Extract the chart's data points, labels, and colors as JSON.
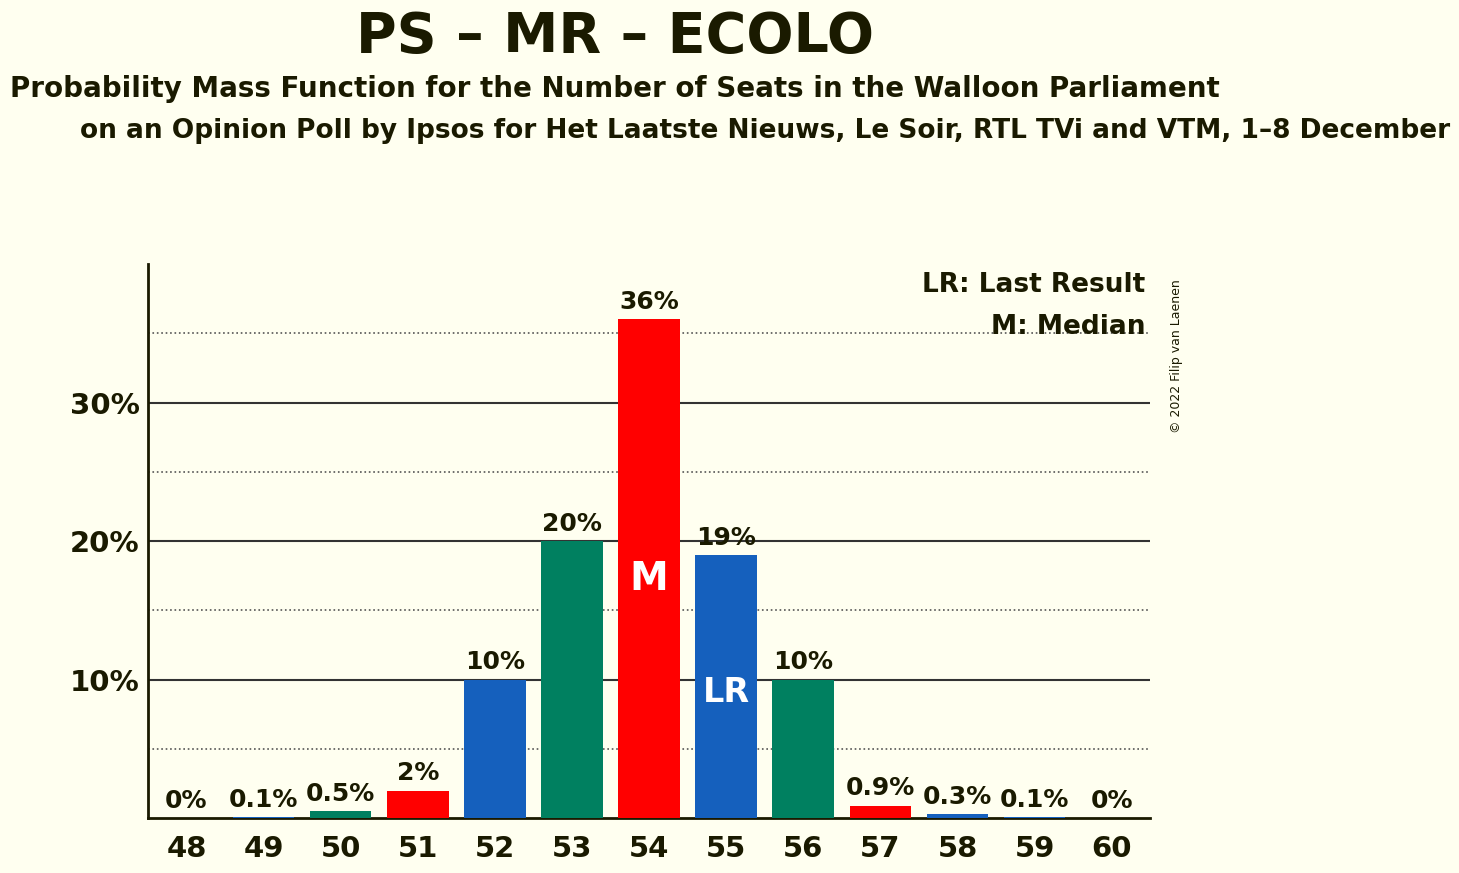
{
  "title": "PS – MR – ECOLO",
  "subtitle": "Probability Mass Function for the Number of Seats in the Walloon Parliament",
  "subtitle2": "on an Opinion Poll by Ipsos for Het Laatste Nieuws, Le Soir, RTL TVi and VTM, 1–8 December",
  "copyright": "© 2022 Filip van Laenen",
  "seats": [
    48,
    49,
    50,
    51,
    52,
    53,
    54,
    55,
    56,
    57,
    58,
    59,
    60
  ],
  "values": [
    0.0,
    0.1,
    0.5,
    2.0,
    10.0,
    20.0,
    36.0,
    19.0,
    10.0,
    0.9,
    0.3,
    0.1,
    0.0
  ],
  "colors": [
    "#1560bd",
    "#1560bd",
    "#008060",
    "#ff0000",
    "#1560bd",
    "#008060",
    "#ff0000",
    "#1560bd",
    "#008060",
    "#ff0000",
    "#1560bd",
    "#1560bd",
    "#1560bd"
  ],
  "bar_labels": [
    "0%",
    "0.1%",
    "0.5%",
    "2%",
    "10%",
    "20%",
    "36%",
    "19%",
    "10%",
    "0.9%",
    "0.3%",
    "0.1%",
    "0%"
  ],
  "median_seat": 54,
  "lr_seat": 55,
  "median_label": "M",
  "lr_label": "LR",
  "legend_lr": "LR: Last Result",
  "legend_m": "M: Median",
  "ylim": [
    0,
    40
  ],
  "yticks": [
    0,
    10,
    20,
    30,
    40
  ],
  "ytick_labels": [
    "",
    "10%",
    "20%",
    "30%",
    ""
  ],
  "background_color": "#fffff0",
  "title_fontsize": 40,
  "subtitle_fontsize": 20,
  "subtitle2_fontsize": 19,
  "bar_label_fontsize": 18,
  "axis_label_fontsize": 21,
  "legend_fontsize": 19,
  "median_label_fontsize": 28,
  "lr_label_fontsize": 24,
  "copyright_fontsize": 9,
  "dotted_levels": [
    5,
    15,
    25,
    35
  ],
  "solid_levels": [
    10,
    20,
    30
  ]
}
